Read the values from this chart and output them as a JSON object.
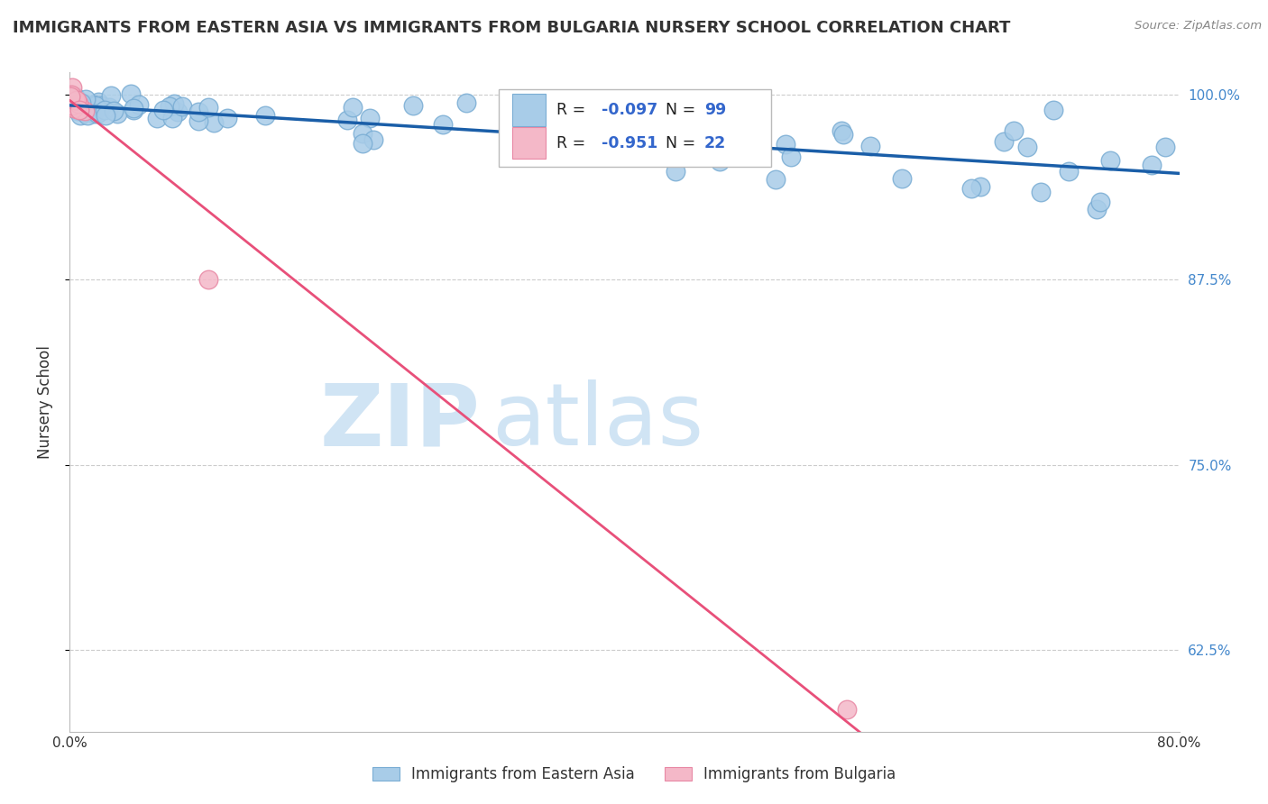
{
  "title": "IMMIGRANTS FROM EASTERN ASIA VS IMMIGRANTS FROM BULGARIA NURSERY SCHOOL CORRELATION CHART",
  "source": "Source: ZipAtlas.com",
  "ylabel": "Nursery School",
  "xlim": [
    0.0,
    0.8
  ],
  "ylim": [
    0.57,
    1.015
  ],
  "ytick_vals": [
    0.625,
    0.75,
    0.875,
    1.0
  ],
  "ytick_labels": [
    "62.5%",
    "75.0%",
    "87.5%",
    "100.0%"
  ],
  "xtick_vals": [
    0.0,
    0.1,
    0.2,
    0.3,
    0.4,
    0.5,
    0.6,
    0.7,
    0.8
  ],
  "xtick_labels": [
    "0.0%",
    "",
    "",
    "",
    "",
    "",
    "",
    "",
    "80.0%"
  ],
  "blue_R": -0.097,
  "blue_N": 99,
  "pink_R": -0.951,
  "pink_N": 22,
  "blue_color": "#A8CCE8",
  "blue_edge": "#7AADD4",
  "pink_color": "#F4B8C8",
  "pink_edge": "#E888A4",
  "blue_line_color": "#1A5EA8",
  "pink_line_color": "#E8507A",
  "watermark_zip": "ZIP",
  "watermark_atlas": "atlas",
  "watermark_color": "#D0E4F4",
  "legend_label_blue": "Immigrants from Eastern Asia",
  "legend_label_pink": "Immigrants from Bulgaria",
  "r_color": "#3366CC",
  "grid_color": "#CCCCCC",
  "title_fontsize": 13,
  "tick_fontsize": 11,
  "axis_label_color": "#333333",
  "ytick_color": "#4488CC",
  "source_color": "#888888"
}
